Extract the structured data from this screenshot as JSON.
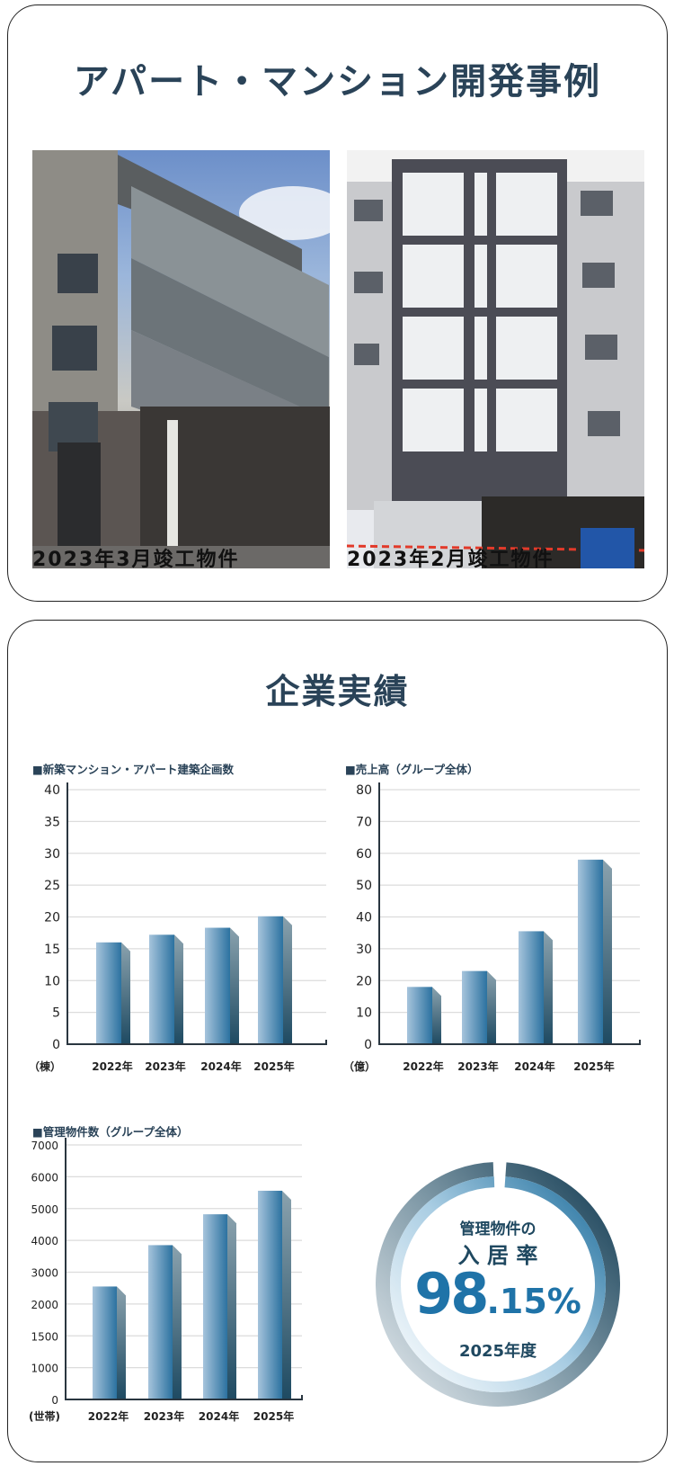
{
  "development": {
    "title": "アパート・マンション開発事例",
    "cases": [
      {
        "caption": "2023年3月竣工物件"
      },
      {
        "caption": "2023年2月竣工物件"
      }
    ]
  },
  "performance": {
    "title": "企業実績",
    "occupancy": {
      "label_line1": "管理物件の",
      "label_line2": "入 居 率",
      "value_main": "98",
      "value_decimal": ".15%",
      "period": "2025年度",
      "rate_percent": 98.15
    }
  },
  "colors": {
    "title": "#2a4358",
    "bar_light": "#a6c4dc",
    "bar_dark": "#2c72a0",
    "accent": "#1f73a8"
  },
  "chart_data": [
    {
      "type": "bar",
      "title": "■新築マンション・アパート建築企画数",
      "unit_label": "（棟）",
      "categories": [
        "2022年",
        "2023年",
        "2024年",
        "2025年"
      ],
      "values": [
        16,
        17.2,
        18.3,
        20.1
      ],
      "yticks": [
        0,
        5,
        10,
        15,
        20,
        25,
        30,
        35,
        40
      ],
      "ylim": [
        0,
        40
      ],
      "grid": true
    },
    {
      "type": "bar",
      "title": "■売上高（グループ全体）",
      "unit_label": "（億）",
      "categories": [
        "2022年",
        "2023年",
        "2024年",
        "2025年"
      ],
      "values": [
        18,
        23,
        35.5,
        58
      ],
      "yticks": [
        0,
        10,
        20,
        30,
        40,
        50,
        60,
        70,
        80
      ],
      "ylim": [
        0,
        80
      ],
      "grid": true
    },
    {
      "type": "bar",
      "title": "■管理物件数（グループ全体）",
      "unit_label": "(世帯)",
      "categories": [
        "2022年",
        "2023年",
        "2024年",
        "2025年"
      ],
      "values": [
        2550,
        3850,
        4820,
        5560
      ],
      "yticks": [
        0,
        1000,
        1500,
        2000,
        3000,
        4000,
        5000,
        6000,
        7000
      ],
      "ylim": [
        0,
        7000
      ],
      "grid": true
    }
  ]
}
